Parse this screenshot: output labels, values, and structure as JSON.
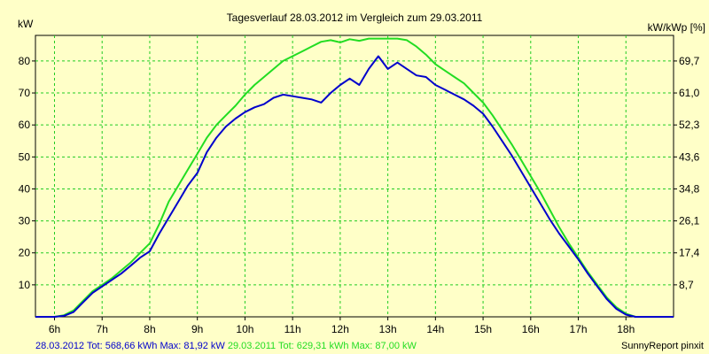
{
  "chart_data": {
    "type": "line",
    "title": "Tagesverlauf 28.03.2012 im Vergleich zum 29.03.2011",
    "ylabel_left": "kW",
    "ylabel_right": "kW/kWp [%]",
    "x_range_hours": [
      5.6,
      19.0
    ],
    "xticks": [
      {
        "h": 6,
        "label": "6h"
      },
      {
        "h": 7,
        "label": "7h"
      },
      {
        "h": 8,
        "label": "8h"
      },
      {
        "h": 9,
        "label": "9h"
      },
      {
        "h": 10,
        "label": "10h"
      },
      {
        "h": 11,
        "label": "11h"
      },
      {
        "h": 12,
        "label": "12h"
      },
      {
        "h": 13,
        "label": "13h"
      },
      {
        "h": 14,
        "label": "14h"
      },
      {
        "h": 15,
        "label": "15h"
      },
      {
        "h": 16,
        "label": "16h"
      },
      {
        "h": 17,
        "label": "17h"
      },
      {
        "h": 18,
        "label": "18h"
      }
    ],
    "ylim": [
      0,
      88
    ],
    "yticks_left": [
      {
        "v": 10,
        "label": "10"
      },
      {
        "v": 20,
        "label": "20"
      },
      {
        "v": 30,
        "label": "30"
      },
      {
        "v": 40,
        "label": "40"
      },
      {
        "v": 50,
        "label": "50"
      },
      {
        "v": 60,
        "label": "60"
      },
      {
        "v": 70,
        "label": "70"
      },
      {
        "v": 80,
        "label": "80"
      }
    ],
    "yticks_right": [
      {
        "v": 10,
        "label": "8,7"
      },
      {
        "v": 20,
        "label": "17,4"
      },
      {
        "v": 30,
        "label": "26,1"
      },
      {
        "v": 40,
        "label": "34,8"
      },
      {
        "v": 50,
        "label": "43,6"
      },
      {
        "v": 60,
        "label": "52,3"
      },
      {
        "v": 70,
        "label": "61,0"
      },
      {
        "v": 80,
        "label": "69,7"
      }
    ],
    "grid": true,
    "series": [
      {
        "name": "29.03.2011",
        "color": "#22dd22",
        "points": [
          [
            5.6,
            0
          ],
          [
            6.0,
            0
          ],
          [
            6.2,
            0.5
          ],
          [
            6.4,
            2
          ],
          [
            6.6,
            5
          ],
          [
            6.8,
            8
          ],
          [
            7.0,
            10
          ],
          [
            7.2,
            12
          ],
          [
            7.4,
            14.5
          ],
          [
            7.6,
            17
          ],
          [
            7.8,
            20
          ],
          [
            8.0,
            23
          ],
          [
            8.2,
            29
          ],
          [
            8.4,
            36
          ],
          [
            8.6,
            41
          ],
          [
            8.8,
            46
          ],
          [
            9.0,
            51
          ],
          [
            9.2,
            56
          ],
          [
            9.4,
            60
          ],
          [
            9.6,
            63
          ],
          [
            9.8,
            66
          ],
          [
            10.0,
            69.5
          ],
          [
            10.2,
            72.5
          ],
          [
            10.4,
            75
          ],
          [
            10.6,
            77.5
          ],
          [
            10.8,
            80
          ],
          [
            11.0,
            81.5
          ],
          [
            11.2,
            83
          ],
          [
            11.4,
            84.5
          ],
          [
            11.6,
            86
          ],
          [
            11.8,
            86.5
          ],
          [
            12.0,
            85.8
          ],
          [
            12.2,
            86.8
          ],
          [
            12.4,
            86.3
          ],
          [
            12.6,
            87
          ],
          [
            12.8,
            87
          ],
          [
            13.0,
            87
          ],
          [
            13.2,
            87
          ],
          [
            13.4,
            86.5
          ],
          [
            13.6,
            84.5
          ],
          [
            13.8,
            82
          ],
          [
            14.0,
            79
          ],
          [
            14.2,
            77
          ],
          [
            14.4,
            75
          ],
          [
            14.6,
            73
          ],
          [
            14.8,
            70
          ],
          [
            15.0,
            67
          ],
          [
            15.2,
            63
          ],
          [
            15.4,
            58.5
          ],
          [
            15.6,
            54
          ],
          [
            15.8,
            49
          ],
          [
            16.0,
            44
          ],
          [
            16.2,
            39
          ],
          [
            16.4,
            33.5
          ],
          [
            16.6,
            28
          ],
          [
            16.8,
            23
          ],
          [
            17.0,
            18.5
          ],
          [
            17.2,
            14
          ],
          [
            17.4,
            10
          ],
          [
            17.6,
            6
          ],
          [
            17.8,
            3
          ],
          [
            18.0,
            1
          ],
          [
            18.2,
            0
          ],
          [
            19.0,
            0
          ]
        ]
      },
      {
        "name": "28.03.2012",
        "color": "#0000cc",
        "points": [
          [
            5.6,
            0
          ],
          [
            6.0,
            0
          ],
          [
            6.2,
            0.3
          ],
          [
            6.4,
            1.5
          ],
          [
            6.6,
            4.5
          ],
          [
            6.8,
            7.5
          ],
          [
            7.0,
            9.5
          ],
          [
            7.2,
            11.5
          ],
          [
            7.4,
            13.5
          ],
          [
            7.6,
            16
          ],
          [
            7.8,
            18.5
          ],
          [
            8.0,
            20.5
          ],
          [
            8.2,
            26
          ],
          [
            8.4,
            31
          ],
          [
            8.6,
            36
          ],
          [
            8.8,
            41
          ],
          [
            9.0,
            45
          ],
          [
            9.2,
            51.5
          ],
          [
            9.4,
            56
          ],
          [
            9.6,
            59.5
          ],
          [
            9.8,
            62
          ],
          [
            10.0,
            64
          ],
          [
            10.2,
            65.5
          ],
          [
            10.4,
            66.5
          ],
          [
            10.6,
            68.5
          ],
          [
            10.8,
            69.5
          ],
          [
            11.0,
            69
          ],
          [
            11.2,
            68.5
          ],
          [
            11.4,
            68
          ],
          [
            11.6,
            67
          ],
          [
            11.8,
            70
          ],
          [
            12.0,
            72.5
          ],
          [
            12.2,
            74.5
          ],
          [
            12.4,
            72.5
          ],
          [
            12.6,
            77.5
          ],
          [
            12.8,
            81.5
          ],
          [
            13.0,
            77.5
          ],
          [
            13.2,
            79.5
          ],
          [
            13.4,
            77.5
          ],
          [
            13.6,
            75.5
          ],
          [
            13.8,
            75
          ],
          [
            14.0,
            72.5
          ],
          [
            14.2,
            71
          ],
          [
            14.4,
            69.5
          ],
          [
            14.6,
            68
          ],
          [
            14.8,
            66
          ],
          [
            15.0,
            63.5
          ],
          [
            15.2,
            59.5
          ],
          [
            15.4,
            55
          ],
          [
            15.6,
            50.5
          ],
          [
            15.8,
            45.5
          ],
          [
            16.0,
            40.5
          ],
          [
            16.2,
            35.5
          ],
          [
            16.4,
            30.5
          ],
          [
            16.6,
            26
          ],
          [
            16.8,
            22
          ],
          [
            17.0,
            18
          ],
          [
            17.2,
            13.5
          ],
          [
            17.4,
            9.5
          ],
          [
            17.6,
            5.5
          ],
          [
            17.8,
            2.5
          ],
          [
            18.0,
            0.7
          ],
          [
            18.2,
            0
          ],
          [
            19.0,
            0
          ]
        ]
      }
    ]
  },
  "footer": {
    "s2012": "28.03.2012 Tot: 568,66 kWh Max: 81,92 kW",
    "s2011": "29.03.2011 Tot: 629,31 kWh Max: 87,00 kW",
    "right": "SunnyReport pinxit"
  },
  "colors": {
    "background": "#ffffc8",
    "grid": "#22cc22",
    "s2012": "#0000cc",
    "s2011": "#22dd22"
  }
}
